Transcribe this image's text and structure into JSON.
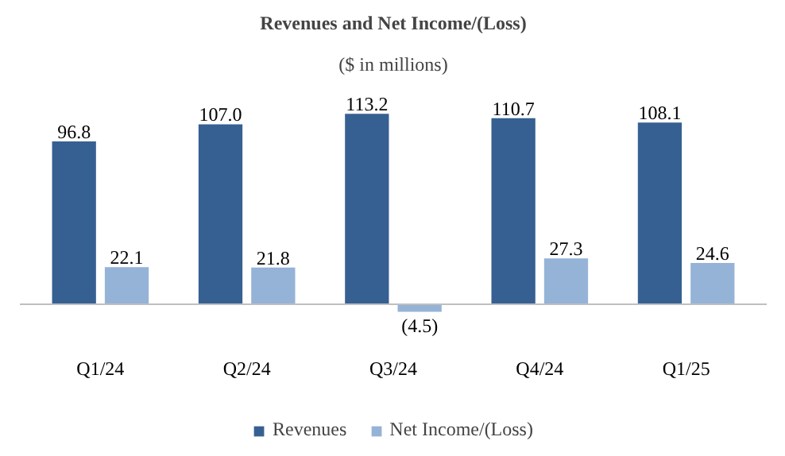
{
  "chart_data": {
    "type": "bar",
    "title": "Revenues and Net Income/(Loss)",
    "subtitle": "($ in millions)",
    "categories": [
      "Q1/24",
      "Q2/24",
      "Q3/24",
      "Q4/24",
      "Q1/25"
    ],
    "series": [
      {
        "name": "Revenues",
        "color": "#376092",
        "values": [
          96.8,
          107.0,
          113.2,
          110.7,
          108.1
        ],
        "value_labels": [
          "96.8",
          "107.0",
          "113.2",
          "110.7",
          "108.1"
        ]
      },
      {
        "name": "Net Income/(Loss)",
        "color": "#95b3d7",
        "values": [
          22.1,
          21.8,
          -4.5,
          27.3,
          24.6
        ],
        "value_labels": [
          "22.1",
          "21.8",
          "(4.5)",
          "27.3",
          "24.6"
        ]
      }
    ],
    "legend": "bottom"
  }
}
